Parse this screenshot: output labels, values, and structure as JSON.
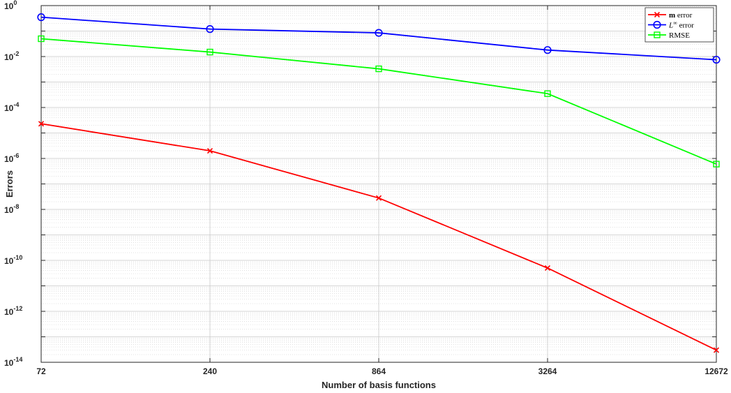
{
  "chart_data": {
    "type": "line",
    "xlabel": "Number of basis functions",
    "ylabel": "Errors",
    "x_categories": [
      "72",
      "240",
      "864",
      "3264",
      "12672"
    ],
    "y_scale": "log",
    "ylim": [
      1e-14,
      1
    ],
    "y_tick_exponents": [
      "0",
      "-2",
      "-4",
      "-6",
      "-8",
      "-10",
      "-12",
      "-14"
    ],
    "y_tick_base": "10",
    "grid": "on (major and minor)",
    "legend_location": "top-right",
    "series": [
      {
        "name": "m error",
        "name_bold_symbol": "m",
        "name_rest": " error",
        "color": "#ff0000",
        "marker": "x",
        "values": [
          2.3e-05,
          2e-06,
          2.8e-08,
          5e-11,
          3e-14
        ]
      },
      {
        "name": "L∞ error",
        "name_symbol": "L",
        "name_sup": "∞",
        "name_rest": " error",
        "color": "#0000ff",
        "marker": "o",
        "values": [
          0.35,
          0.12,
          0.085,
          0.018,
          0.0075
        ]
      },
      {
        "name": "RMSE",
        "color": "#00ff00",
        "marker": "s",
        "values": [
          0.05,
          0.015,
          0.0033,
          0.00035,
          6e-07
        ]
      }
    ]
  }
}
